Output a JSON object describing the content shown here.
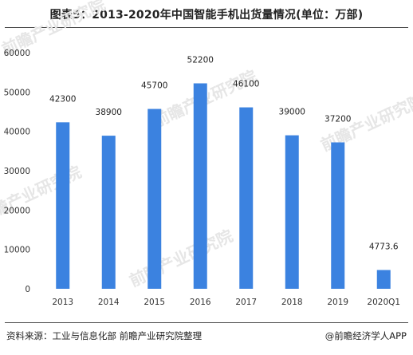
{
  "header": {
    "title": "图表5：2013-2020年中国智能手机出货量情况(单位：万部)"
  },
  "footer": {
    "source": "资料来源：工业与信息化部 前瞻产业研究院整理",
    "credit": "@前瞻经济学人APP"
  },
  "watermark": {
    "text": "前瞻产业研究院"
  },
  "colors": {
    "bar": "#3b82e0",
    "axis_text": "#333333",
    "rule": "#4a4a4a"
  },
  "chart_data": {
    "type": "bar",
    "title": "图表5：2013-2020年中国智能手机出货量情况(单位：万部)",
    "unit": "万部",
    "categories": [
      "2013",
      "2014",
      "2015",
      "2016",
      "2017",
      "2018",
      "2019",
      "2020Q1"
    ],
    "values": [
      42300,
      38900,
      45700,
      52200,
      46100,
      39000,
      37200,
      4773.6
    ],
    "data_labels": [
      "42300",
      "38900",
      "45700",
      "52200",
      "46100",
      "39000",
      "37200",
      "4773.6"
    ],
    "yticks": [
      0,
      10000,
      20000,
      30000,
      40000,
      50000,
      60000
    ],
    "ylim": [
      0,
      60000
    ],
    "xlabel": "",
    "ylabel": "",
    "grid": false,
    "legend": "none"
  }
}
